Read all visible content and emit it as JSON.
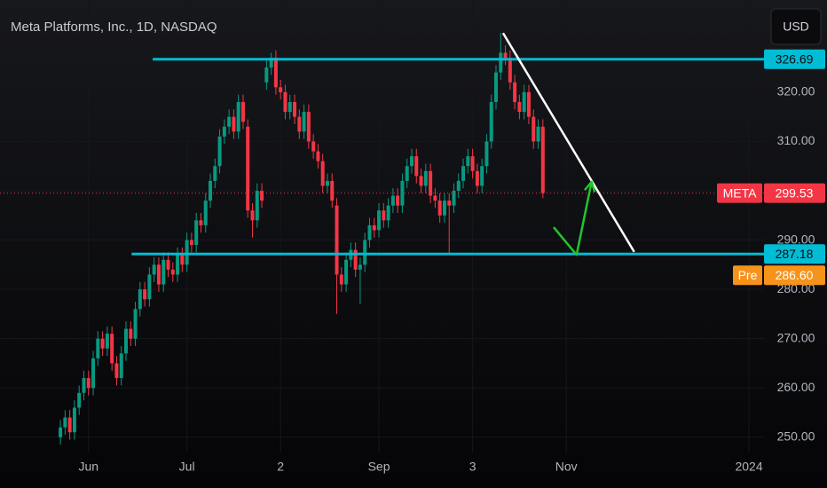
{
  "chart_data": {
    "type": "candlestick",
    "title": "Meta Platforms, Inc., 1D, NASDAQ",
    "currency": "USD",
    "up_color": "#089981",
    "down_color": "#f23645",
    "ohlc": [
      [
        250,
        253.5,
        248.5,
        252
      ],
      [
        252,
        255.5,
        250.5,
        254
      ],
      [
        254,
        255.5,
        249.5,
        251
      ],
      [
        251,
        257.5,
        249.5,
        256
      ],
      [
        256,
        260.5,
        254.5,
        259
      ],
      [
        259,
        263.5,
        257.5,
        262
      ],
      [
        262,
        263.5,
        258.5,
        260
      ],
      [
        260,
        267.5,
        258.5,
        266
      ],
      [
        266,
        271.5,
        264.5,
        270
      ],
      [
        270,
        271.5,
        266.5,
        268
      ],
      [
        268,
        272.5,
        266.5,
        271
      ],
      [
        271,
        272.5,
        263.5,
        265
      ],
      [
        265,
        266.5,
        260.5,
        262
      ],
      [
        262,
        268.5,
        260.5,
        267
      ],
      [
        267,
        273.5,
        265.5,
        272
      ],
      [
        272,
        273.5,
        268.5,
        270
      ],
      [
        270,
        277.5,
        268.5,
        276
      ],
      [
        276,
        281.5,
        274.5,
        280
      ],
      [
        280,
        281.5,
        276.5,
        278
      ],
      [
        278,
        284.5,
        276.5,
        283
      ],
      [
        283,
        286.5,
        281.5,
        285
      ],
      [
        285,
        286.5,
        279.5,
        281
      ],
      [
        281,
        287.5,
        279.5,
        286
      ],
      [
        286,
        287.5,
        282.5,
        284
      ],
      [
        284,
        285.5,
        281.5,
        283
      ],
      [
        283,
        288.5,
        281.5,
        287
      ],
      [
        287,
        288.5,
        283.5,
        285
      ],
      [
        285,
        291.5,
        283.5,
        290
      ],
      [
        290,
        291.5,
        287.5,
        289
      ],
      [
        289,
        295.5,
        287.5,
        294
      ],
      [
        294,
        295.5,
        291.5,
        293
      ],
      [
        293,
        299.5,
        291.5,
        298
      ],
      [
        298,
        303.5,
        296.5,
        302
      ],
      [
        302,
        306.5,
        300.5,
        305
      ],
      [
        305,
        312.5,
        303.5,
        311
      ],
      [
        311,
        314.5,
        309.5,
        313
      ],
      [
        313,
        316.5,
        311.5,
        315
      ],
      [
        315,
        316.5,
        310.5,
        312
      ],
      [
        312,
        319.5,
        310.5,
        318
      ],
      [
        318,
        319.5,
        312.5,
        314
      ],
      [
        313,
        314.5,
        294.5,
        296
      ],
      [
        296,
        297.5,
        290.5,
        294
      ],
      [
        294,
        301.5,
        292.5,
        300
      ],
      [
        300,
        301.5,
        296.5,
        298
      ],
      [
        322,
        326.5,
        320.5,
        325
      ],
      [
        325,
        328,
        323.5,
        327
      ],
      [
        327,
        328.5,
        319.5,
        321
      ],
      [
        321,
        322.5,
        318.5,
        320
      ],
      [
        320,
        321.5,
        314.5,
        316
      ],
      [
        316,
        319.5,
        314.5,
        318
      ],
      [
        318,
        319.5,
        313.5,
        315
      ],
      [
        315,
        316.5,
        310.5,
        312
      ],
      [
        312,
        317.5,
        310.5,
        316
      ],
      [
        316,
        317.5,
        308.5,
        310
      ],
      [
        310,
        311.5,
        306.5,
        308
      ],
      [
        308,
        309.5,
        304.5,
        306
      ],
      [
        306,
        307.5,
        299.5,
        301
      ],
      [
        301,
        303.5,
        299.5,
        302
      ],
      [
        302,
        303.5,
        296.5,
        298
      ],
      [
        297,
        298.5,
        275,
        283
      ],
      [
        283,
        284.5,
        279.5,
        281
      ],
      [
        281,
        287.5,
        279.5,
        286
      ],
      [
        286,
        289.5,
        284.5,
        288
      ],
      [
        288,
        289.5,
        282.5,
        284
      ],
      [
        284,
        286.5,
        277,
        285
      ],
      [
        285,
        291.5,
        283.5,
        290
      ],
      [
        290,
        294.5,
        288.5,
        293
      ],
      [
        293,
        294.5,
        290.5,
        292
      ],
      [
        292,
        297.5,
        290.5,
        296
      ],
      [
        296,
        297.5,
        292.5,
        294
      ],
      [
        294,
        298.5,
        292.5,
        297
      ],
      [
        297,
        300.5,
        295.5,
        299
      ],
      [
        299,
        300.5,
        295.5,
        297
      ],
      [
        297,
        303.5,
        295.5,
        302
      ],
      [
        302,
        306.5,
        300.5,
        305
      ],
      [
        305,
        308.5,
        303.5,
        307
      ],
      [
        307,
        308.5,
        301.5,
        303
      ],
      [
        303,
        304.5,
        299.5,
        301
      ],
      [
        301,
        305.5,
        299.5,
        304
      ],
      [
        304,
        305.5,
        297.5,
        299
      ],
      [
        299,
        300.5,
        296.5,
        298
      ],
      [
        298,
        299.5,
        293.5,
        295
      ],
      [
        295,
        299.5,
        293.5,
        298
      ],
      [
        298,
        299.5,
        287,
        297
      ],
      [
        297,
        301.5,
        295.5,
        300
      ],
      [
        300,
        303.5,
        298.5,
        302
      ],
      [
        302,
        306.5,
        300.5,
        305
      ],
      [
        305,
        308.5,
        303.5,
        307
      ],
      [
        307,
        308.5,
        302.5,
        304
      ],
      [
        304,
        305.5,
        299.5,
        301
      ],
      [
        301,
        306.5,
        299.5,
        305
      ],
      [
        305,
        311.5,
        303.5,
        310
      ],
      [
        310,
        319.5,
        308.5,
        318
      ],
      [
        318,
        325.5,
        316.5,
        324
      ],
      [
        324,
        332,
        322.5,
        328
      ],
      [
        328,
        329.5,
        325.5,
        327
      ],
      [
        327,
        328.5,
        320.5,
        322
      ],
      [
        322,
        323.5,
        316.5,
        318
      ],
      [
        318,
        319.5,
        314.5,
        316
      ],
      [
        316,
        321.5,
        314.5,
        320
      ],
      [
        320,
        321.5,
        313.5,
        315
      ],
      [
        315,
        316.5,
        308.5,
        310
      ],
      [
        310,
        314.5,
        308.5,
        313
      ],
      [
        313,
        314.5,
        298.5,
        299.53
      ]
    ],
    "xlim": [
      -12.9,
      150.4
    ],
    "xticks": [
      {
        "value": 6,
        "label": "Jun"
      },
      {
        "value": 27,
        "label": "Jul"
      },
      {
        "value": 47,
        "label": "2"
      },
      {
        "value": 68,
        "label": "Sep"
      },
      {
        "value": 88,
        "label": "3"
      },
      {
        "value": 108,
        "label": "Nov"
      },
      {
        "value": 147,
        "label": "2024"
      }
    ],
    "ylim": [
      246.9,
      338.7
    ],
    "yticks": [
      {
        "value": 250,
        "label": "250.00"
      },
      {
        "value": 260,
        "label": "260.00"
      },
      {
        "value": 270,
        "label": "270.00"
      },
      {
        "value": 280,
        "label": "280.00"
      },
      {
        "value": 290,
        "label": "290.00"
      },
      {
        "value": 300,
        "label": "300.00"
      },
      {
        "value": 310,
        "label": "310.00"
      },
      {
        "value": 320,
        "label": "320.00"
      }
    ],
    "levels": [
      {
        "value": 326.69,
        "x_start": 19.7,
        "color": "#00bcd4"
      },
      {
        "value": 287.18,
        "x_start": 15.2,
        "color": "#00bcd4"
      }
    ],
    "last_price": {
      "name": "META",
      "value": 299.53,
      "color": "#f23645"
    },
    "premarket": {
      "name": "Pre",
      "value": 286.6,
      "label": "286.60",
      "color": "#f7931a"
    },
    "trendline": {
      "points": [
        [
          94.5,
          332
        ],
        [
          122.5,
          287.6
        ]
      ],
      "color": "#ffffff"
    },
    "arrow": {
      "points": [
        [
          105.3,
          292.6
        ],
        [
          110.2,
          287
        ],
        [
          113.4,
          301.8
        ]
      ],
      "color": "#22c52e"
    }
  }
}
